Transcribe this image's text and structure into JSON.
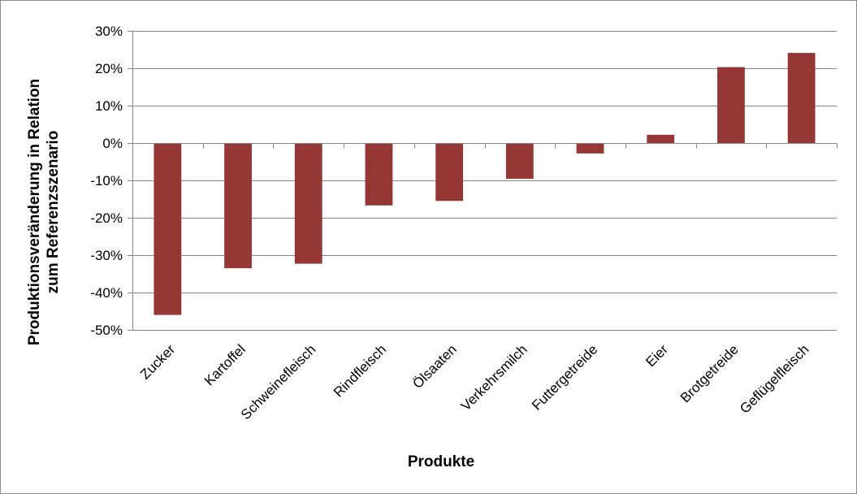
{
  "chart_data": {
    "type": "bar",
    "xlabel": "Produkte",
    "ylabel_lines": [
      "Produktionsveränderung in Relation",
      "zum Referenzszenario"
    ],
    "categories": [
      "Zucker",
      "Kartoffel",
      "Schweinefleisch",
      "Rindfleisch",
      "Ölsaaten",
      "Verkehrsmilch",
      "Futtergetreide",
      "Eier",
      "Brotgetreide",
      "Geflügelfleisch"
    ],
    "values": [
      -46,
      -33.5,
      -32.3,
      -16.7,
      -15.5,
      -9.6,
      -2.8,
      2.2,
      20.3,
      24.1
    ],
    "ylim": [
      -50,
      30
    ],
    "yticks": [
      30,
      20,
      10,
      0,
      -10,
      -20,
      -30,
      -40,
      -50
    ],
    "ytick_labels": [
      "30%",
      "20%",
      "10%",
      "0%",
      "-10%",
      "-20%",
      "-30%",
      "-40%",
      "-50%"
    ],
    "grid": true,
    "bar_color": "#953735",
    "grid_color": "#868686"
  }
}
